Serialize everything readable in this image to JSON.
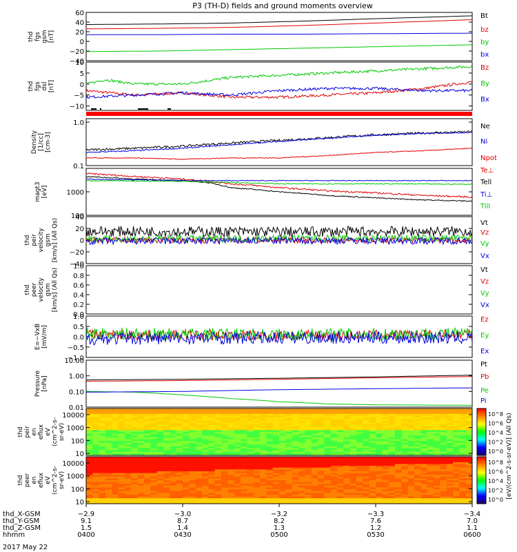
{
  "title": "P3 (TH-D) fields and ground moments overview",
  "date_label": "2017 May 22",
  "colorbar_label": "[eV/(cm^2-s-sr-eV)] (All Qs)",
  "colorbar_ticks": [
    "10^8",
    "10^6",
    "10^4",
    "10^2",
    "10^0"
  ],
  "colorbar_colors": [
    "#ff0000",
    "#ff8000",
    "#ffff00",
    "#00ff00",
    "#00ffff",
    "#0000ff",
    "#200060"
  ],
  "chart_data": [
    {
      "type": "line",
      "panel": "fgs-gsm",
      "ylabel": [
        "thd",
        "fgs",
        "gsm",
        "[nT]"
      ],
      "ylim": [
        -40,
        60
      ],
      "ytick_values": [
        60,
        40,
        20,
        0,
        -20,
        -40
      ],
      "ytick_labels": [
        "60",
        "40",
        "20",
        "0",
        "−20",
        "−40"
      ],
      "series": [
        {
          "name": "Bt",
          "color": "#000000",
          "points": [
            [
              0,
              35
            ],
            [
              15,
              36
            ],
            [
              30,
              38
            ],
            [
              45,
              42
            ],
            [
              60,
              47
            ],
            [
              80,
              53
            ]
          ]
        },
        {
          "name": "bz",
          "color": "#e00000",
          "points": [
            [
              0,
              26
            ],
            [
              15,
              27
            ],
            [
              30,
              29
            ],
            [
              45,
              33
            ],
            [
              60,
              38
            ],
            [
              80,
              45
            ]
          ]
        },
        {
          "name": "by",
          "color": "#00c800",
          "points": [
            [
              0,
              -21
            ],
            [
              15,
              -20
            ],
            [
              30,
              -17
            ],
            [
              45,
              -14
            ],
            [
              60,
              -11
            ],
            [
              80,
              -7
            ]
          ]
        },
        {
          "name": "bx",
          "color": "#0000e0",
          "points": [
            [
              0,
              14
            ],
            [
              15,
              14
            ],
            [
              30,
              15
            ],
            [
              45,
              15
            ],
            [
              60,
              16
            ],
            [
              80,
              17
            ]
          ]
        }
      ]
    },
    {
      "type": "line",
      "panel": "fgs-dsl",
      "ylabel": [
        "thd",
        "fgs",
        "dsl",
        "[nT]"
      ],
      "ylim": [
        -12,
        10
      ],
      "ytick_values": [
        10,
        5,
        0,
        -5,
        -10
      ],
      "ytick_labels": [
        "10",
        "5",
        "0",
        "−5",
        "−10"
      ],
      "series": [
        {
          "name": "Bz",
          "color": "#e00000",
          "points": [
            [
              0,
              -3
            ],
            [
              10,
              -5
            ],
            [
              20,
              -4
            ],
            [
              30,
              -6
            ],
            [
              40,
              -6
            ],
            [
              50,
              -5
            ],
            [
              60,
              -4
            ],
            [
              70,
              -2
            ],
            [
              80,
              1
            ]
          ]
        },
        {
          "name": "By",
          "color": "#00c800",
          "points": [
            [
              0,
              0
            ],
            [
              4,
              2
            ],
            [
              10,
              0
            ],
            [
              20,
              0
            ],
            [
              30,
              3
            ],
            [
              40,
              4
            ],
            [
              50,
              5
            ],
            [
              60,
              6
            ],
            [
              70,
              7
            ],
            [
              80,
              8
            ]
          ]
        },
        {
          "name": "Bx",
          "color": "#0000e0",
          "points": [
            [
              0,
              -6
            ],
            [
              10,
              -5
            ],
            [
              20,
              -4
            ],
            [
              30,
              -5
            ],
            [
              40,
              -3
            ],
            [
              50,
              -2
            ],
            [
              60,
              -2
            ],
            [
              70,
              -3
            ],
            [
              80,
              -3
            ]
          ]
        }
      ]
    },
    {
      "type": "line",
      "panel": "density",
      "ylabel": [
        "Density",
        "[1/cc]",
        "[cm-3]"
      ],
      "yscale": "log",
      "ylim": [
        0.1,
        1.2
      ],
      "ytick_values": [
        1.0,
        0.1
      ],
      "ytick_labels": [
        "1.0",
        "0.1"
      ],
      "series": [
        {
          "name": "Ne",
          "color": "#000000",
          "points": [
            [
              0,
              0.23
            ],
            [
              10,
              0.25
            ],
            [
              20,
              0.28
            ],
            [
              30,
              0.33
            ],
            [
              40,
              0.38
            ],
            [
              50,
              0.44
            ],
            [
              60,
              0.51
            ],
            [
              70,
              0.56
            ],
            [
              80,
              0.6
            ]
          ]
        },
        {
          "name": "Ni",
          "color": "#0000e0",
          "points": [
            [
              0,
              0.2
            ],
            [
              10,
              0.22
            ],
            [
              20,
              0.25
            ],
            [
              30,
              0.3
            ],
            [
              40,
              0.36
            ],
            [
              50,
              0.42
            ],
            [
              60,
              0.5
            ],
            [
              70,
              0.55
            ],
            [
              80,
              0.58
            ]
          ]
        },
        {
          "name": "Npot",
          "color": "#e00000",
          "points": [
            [
              0,
              0.15
            ],
            [
              10,
              0.15
            ],
            [
              20,
              0.14
            ],
            [
              30,
              0.15
            ],
            [
              40,
              0.15
            ],
            [
              50,
              0.17
            ],
            [
              60,
              0.2
            ],
            [
              70,
              0.22
            ],
            [
              80,
              0.25
            ]
          ]
        }
      ]
    },
    {
      "type": "line",
      "panel": "temperature",
      "ylabel": [
        "magt3",
        "[eV]"
      ],
      "yscale": "log",
      "ylim": [
        100,
        10000
      ],
      "ytick_values": [
        1000,
        100
      ],
      "ytick_labels": [
        "1000",
        "100"
      ],
      "series": [
        {
          "name": "Te⊥",
          "color": "#e00000",
          "points": [
            [
              0,
              6000
            ],
            [
              10,
              4500
            ],
            [
              20,
              3500
            ],
            [
              30,
              2200
            ],
            [
              40,
              1500
            ],
            [
              50,
              1100
            ],
            [
              60,
              900
            ],
            [
              70,
              700
            ],
            [
              80,
              600
            ]
          ]
        },
        {
          "name": "Tell",
          "color": "#000000",
          "points": [
            [
              0,
              4500
            ],
            [
              10,
              3500
            ],
            [
              20,
              3000
            ],
            [
              25,
              2500
            ],
            [
              30,
              1500
            ],
            [
              40,
              1000
            ],
            [
              50,
              700
            ],
            [
              60,
              550
            ],
            [
              70,
              450
            ],
            [
              80,
              400
            ]
          ]
        },
        {
          "name": "Ti⊥",
          "color": "#0000e0",
          "points": [
            [
              0,
              3500
            ],
            [
              20,
              3000
            ],
            [
              40,
              3000
            ],
            [
              60,
              3000
            ],
            [
              80,
              3000
            ]
          ]
        },
        {
          "name": "Till",
          "color": "#00c800",
          "points": [
            [
              0,
              3000
            ],
            [
              20,
              2800
            ],
            [
              40,
              2200
            ],
            [
              60,
              2200
            ],
            [
              80,
              2100
            ]
          ]
        }
      ]
    },
    {
      "type": "line",
      "panel": "peir-velocity",
      "ylabel": [
        "thd",
        "peir",
        "velocity",
        "gsm",
        "[km/s] (All Qs)"
      ],
      "ylim": [
        -40,
        40
      ],
      "ytick_values": [
        40,
        20,
        0,
        -20,
        -40
      ],
      "ytick_labels": [
        "40",
        "20",
        "0",
        "−20",
        "−40"
      ],
      "series": [
        {
          "name": "Vt",
          "color": "#000000",
          "points": [
            [
              0,
              15
            ],
            [
              40,
              14
            ],
            [
              80,
              15
            ]
          ]
        },
        {
          "name": "Vz",
          "color": "#e00000",
          "points": [
            [
              0,
              0
            ],
            [
              40,
              0
            ],
            [
              80,
              0
            ]
          ]
        },
        {
          "name": "Vy",
          "color": "#00c800",
          "points": [
            [
              0,
              2
            ],
            [
              40,
              3
            ],
            [
              80,
              3
            ]
          ]
        },
        {
          "name": "Vx",
          "color": "#0000e0",
          "points": [
            [
              0,
              -2
            ],
            [
              40,
              -1
            ],
            [
              80,
              -1
            ]
          ]
        }
      ]
    },
    {
      "type": "line",
      "panel": "peer-velocity",
      "ylabel": [
        "thd",
        "peer",
        "velocity",
        "gsm",
        "[km/s] (All Qs)"
      ],
      "ylim": [
        0,
        1
      ],
      "ytick_values": [
        1.0,
        0.8,
        0.6,
        0.4,
        0.2,
        0.0
      ],
      "ytick_labels": [
        "1.0",
        "0.8",
        "0.6",
        "0.4",
        "0.2",
        "0.0"
      ],
      "series": [
        {
          "name": "Vt",
          "color": "#000000",
          "points": []
        },
        {
          "name": "Vz",
          "color": "#e00000",
          "points": []
        },
        {
          "name": "Vy",
          "color": "#00c800",
          "points": []
        },
        {
          "name": "Vx",
          "color": "#0000e0",
          "points": []
        }
      ]
    },
    {
      "type": "line",
      "panel": "efield",
      "ylabel": [
        "E=−VxB",
        "[mV/m]"
      ],
      "ylim": [
        -1,
        1
      ],
      "ytick_values": [
        1.0,
        0.5,
        0.0,
        -0.5,
        -1.0
      ],
      "ytick_labels": [
        "1.0",
        "0.5",
        "0.0",
        "−0.5",
        "−1.0"
      ],
      "series": [
        {
          "name": "Ez",
          "color": "#e00000",
          "points": [
            [
              0,
              0.1
            ],
            [
              40,
              0.05
            ],
            [
              80,
              0.1
            ]
          ]
        },
        {
          "name": "Ey",
          "color": "#00c800",
          "points": [
            [
              0,
              0.15
            ],
            [
              40,
              0.1
            ],
            [
              80,
              0.15
            ]
          ]
        },
        {
          "name": "Ex",
          "color": "#0000e0",
          "points": [
            [
              0,
              -0.1
            ],
            [
              40,
              -0.05
            ],
            [
              80,
              -0.05
            ]
          ]
        }
      ]
    },
    {
      "type": "line",
      "panel": "pressure",
      "ylabel": [
        "Pressure",
        "[nPa]"
      ],
      "yscale": "log",
      "ylim": [
        0.01,
        10
      ],
      "ytick_values": [
        10,
        1,
        0.1,
        0.01
      ],
      "ytick_labels": [
        "10.00",
        "1.00",
        "0.10",
        "0.01"
      ],
      "series": [
        {
          "name": "Pt",
          "color": "#000000",
          "points": [
            [
              0,
              0.55
            ],
            [
              20,
              0.6
            ],
            [
              40,
              0.7
            ],
            [
              60,
              0.85
            ],
            [
              80,
              1.1
            ]
          ]
        },
        {
          "name": "Pb",
          "color": "#e00000",
          "points": [
            [
              0,
              0.45
            ],
            [
              20,
              0.5
            ],
            [
              40,
              0.6
            ],
            [
              60,
              0.75
            ],
            [
              80,
              0.9
            ]
          ]
        },
        {
          "name": "Pe",
          "color": "#00c800",
          "points": [
            [
              0,
              0.1
            ],
            [
              10,
              0.09
            ],
            [
              20,
              0.06
            ],
            [
              30,
              0.035
            ],
            [
              40,
              0.022
            ],
            [
              50,
              0.016
            ],
            [
              60,
              0.014
            ],
            [
              80,
              0.013
            ]
          ]
        },
        {
          "name": "Pi",
          "color": "#0000e0",
          "points": [
            [
              0,
              0.09
            ],
            [
              20,
              0.1
            ],
            [
              40,
              0.13
            ],
            [
              60,
              0.15
            ],
            [
              80,
              0.17
            ]
          ]
        }
      ]
    },
    {
      "type": "heatmap",
      "panel": "peir-eflux",
      "ylabel": [
        "thd",
        "peir",
        "en",
        "eflux",
        "eV",
        "(cm^2-s-",
        "sr-eV)"
      ],
      "yscale": "log",
      "ylim": [
        7,
        30000
      ],
      "ytick_values": [
        10000,
        1000,
        100,
        10
      ],
      "ytick_labels": [
        "10000",
        "1000",
        "100",
        "10"
      ]
    },
    {
      "type": "heatmap",
      "panel": "peer-eflux",
      "ylabel": [
        "thd",
        "peer",
        "en",
        "eflux",
        "eV",
        "(cm^2-s-",
        "sr-eV)"
      ],
      "yscale": "log",
      "ylim": [
        7,
        30000
      ],
      "ytick_values": [
        10000,
        1000,
        100,
        10
      ],
      "ytick_labels": [
        "10000",
        "1000",
        "100",
        "10"
      ]
    }
  ],
  "xaxis": {
    "row_labels": [
      "thd_X-GSM",
      "thd_Y-GSM",
      "thd_Z-GSM",
      "hhmm"
    ],
    "ticks": [
      {
        "t": 0,
        "values": [
          "−2.9",
          "9.1",
          "1.5",
          "0400"
        ]
      },
      {
        "t": 20,
        "values": [
          "−3.0",
          "8.7",
          "1.4",
          "0430"
        ]
      },
      {
        "t": 40,
        "values": [
          "−3.2",
          "8.2",
          "1.3",
          "0500"
        ]
      },
      {
        "t": 60,
        "values": [
          "−3.3",
          "7.6",
          "1.2",
          "0530"
        ]
      },
      {
        "t": 80,
        "values": [
          "−3.4",
          "7.0",
          "1.1",
          "0600"
        ]
      }
    ]
  }
}
